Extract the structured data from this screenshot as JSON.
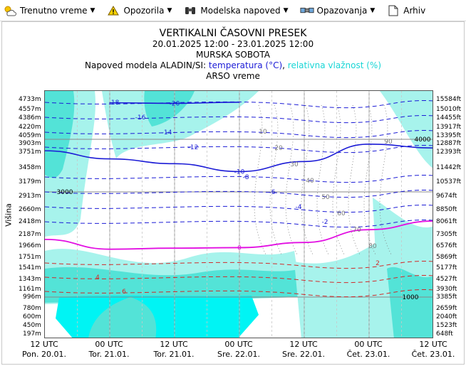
{
  "menu": {
    "items": [
      {
        "id": "weather",
        "label": "Trenutno vreme",
        "icon": "sun-cloud-icon",
        "has_caret": true
      },
      {
        "id": "warnings",
        "label": "Opozorila",
        "icon": "warning-icon",
        "has_caret": true
      },
      {
        "id": "forecast",
        "label": "Modelska napoved",
        "icon": "binoculars-icon",
        "has_caret": true
      },
      {
        "id": "observations",
        "label": "Opazovanja",
        "icon": "satellite-icon",
        "has_caret": true
      },
      {
        "id": "archive",
        "label": "Arhiv",
        "icon": "document-icon",
        "has_caret": false
      }
    ]
  },
  "titles": {
    "main": "VERTIKALNI ČASOVNI PRESEK",
    "period": "20.01.2025 12:00 - 23.01.2025 12:00",
    "location": "MURSKA SOBOTA",
    "model_prefix": "Napoved modela ALADIN/SI: ",
    "temp_label": "temperatura (°C)",
    "separator": ", ",
    "hum_label": "relativna vlažnost (%)",
    "source": "ARSO vreme"
  },
  "axis": {
    "y_title": "Višina",
    "left_ticks": [
      "4733m",
      "4557m",
      "4386m",
      "4220m",
      "4059m",
      "3903m",
      "3751m",
      "3458m",
      "3179m",
      "2913m",
      "2660m",
      "2418m",
      "2187m",
      "1966m",
      "1751m",
      "1541m",
      "1343m",
      "1161m",
      "996m",
      "780m",
      "600m",
      "450m",
      "197m"
    ],
    "right_ticks": [
      "15584ft",
      "15010ft",
      "14455ft",
      "13917ft",
      "13395ft",
      "12887ft",
      "12393ft",
      "11442ft",
      "10537ft",
      "9674ft",
      "8850ft",
      "8061ft",
      "7305ft",
      "6576ft",
      "5869ft",
      "5177ft",
      "4527ft",
      "3930ft",
      "3385ft",
      "2659ft",
      "2040ft",
      "1523ft",
      "648ft"
    ],
    "x_ticks": [
      {
        "time": "12 UTC",
        "day": "Pon. 20.01."
      },
      {
        "time": "00 UTC",
        "day": "Tor. 21.01."
      },
      {
        "time": "12 UTC",
        "day": "Tor. 21.01."
      },
      {
        "time": "00 UTC",
        "day": "Sre. 22.01."
      },
      {
        "time": "12 UTC",
        "day": "Sre. 22.01."
      },
      {
        "time": "00 UTC",
        "day": "Čet. 23.01."
      },
      {
        "time": "12 UTC",
        "day": "Čet. 23.01."
      }
    ]
  },
  "chart_data": {
    "type": "line",
    "title": "VERTIKALNI ČASOVNI PRESEK",
    "xlabel": "",
    "ylabel": "Višina",
    "x": [
      "12 UTC Pon. 20.01.",
      "00 UTC Tor. 21.01.",
      "12 UTC Tor. 21.01.",
      "00 UTC Sre. 22.01.",
      "12 UTC Sre. 22.01.",
      "00 UTC Čet. 23.01.",
      "12 UTC Čet. 23.01."
    ],
    "grid": true,
    "height_markers": [
      "4000",
      "3000",
      "1000"
    ],
    "series": [
      {
        "name": "temperatura (°C)",
        "color": "#1b1bd6",
        "contours": [
          {
            "level": -20,
            "heights_m": [
              null,
              4700,
              4690,
              4710,
              null,
              null,
              null
            ]
          },
          {
            "level": -10,
            "heights_m": [
              3800,
              3650,
              3560,
              3410,
              3600,
              3920,
              3850
            ]
          },
          {
            "level": 0,
            "heights_m": [
              2120,
              1930,
              1950,
              1960,
              2060,
              2300,
              2460
            ]
          }
        ]
      },
      {
        "name": "relativna vlažnost (%)",
        "color": "#18d6d6",
        "shaded_levels": [
          70,
          80,
          90
        ]
      }
    ],
    "temperature_labels": [
      -20,
      -18,
      -16,
      -14,
      -12,
      -10,
      -8,
      -6,
      -4,
      -2,
      0,
      2,
      4,
      6
    ],
    "humidity_labels": [
      10,
      20,
      30,
      40,
      50,
      60,
      70,
      80,
      90
    ]
  },
  "colors": {
    "temperature": "#1b1bd6",
    "humidity": "#18d6d6",
    "humidity_fill_light": "#a7f3ec",
    "humidity_fill_mid": "#53e3d7",
    "humidity_fill_high": "#00f4f4",
    "zero_isotherm": "#e20fe2",
    "positive_temp": "#d22a2a",
    "isohumes": "#7a7a7a"
  }
}
